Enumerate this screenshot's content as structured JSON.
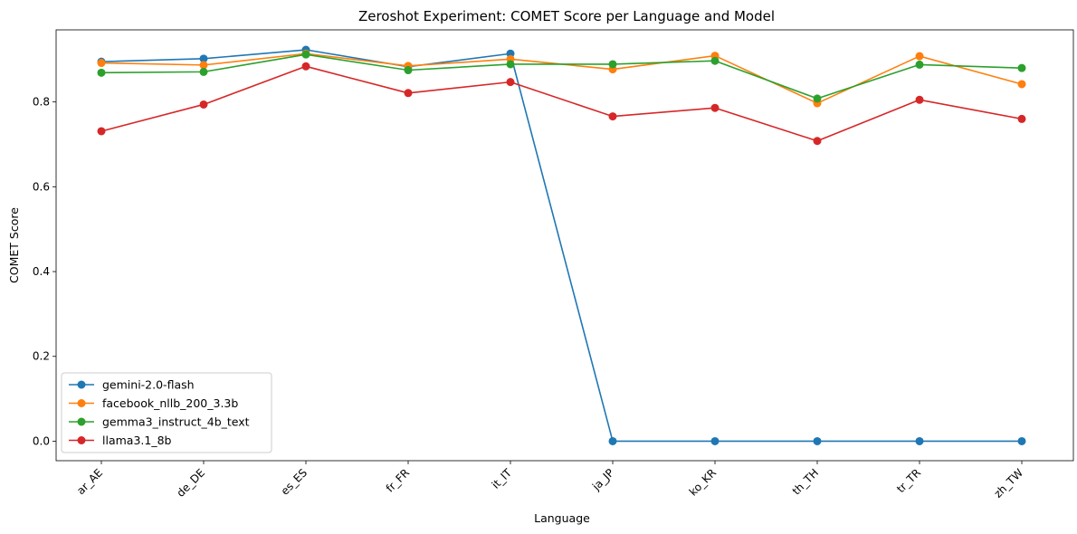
{
  "chart_data": {
    "type": "line",
    "title": "Zeroshot Experiment: COMET Score per Language and Model",
    "xlabel": "Language",
    "ylabel": "COMET Score",
    "categories": [
      "ar_AE",
      "de_DE",
      "es_ES",
      "fr_FR",
      "it_IT",
      "ja_JP",
      "ko_KR",
      "th_TH",
      "tr_TR",
      "zh_TW"
    ],
    "ylim": [
      -0.046,
      0.97
    ],
    "yticks": [
      "0.0",
      "0.2",
      "0.4",
      "0.6",
      "0.8"
    ],
    "grid": false,
    "legend_position": "lower-left",
    "series": [
      {
        "name": "gemini-2.0-flash",
        "color": "#1f77b4",
        "values": [
          0.895,
          0.902,
          0.923,
          0.883,
          0.914,
          0.0,
          0.0,
          0.0,
          0.0,
          0.0
        ]
      },
      {
        "name": "facebook_nllb_200_3.3b",
        "color": "#ff7f0e",
        "values": [
          0.892,
          0.887,
          0.914,
          0.885,
          0.901,
          0.877,
          0.909,
          0.797,
          0.908,
          0.842
        ]
      },
      {
        "name": "gemma3_instruct_4b_text",
        "color": "#2ca02c",
        "values": [
          0.869,
          0.871,
          0.912,
          0.875,
          0.889,
          0.889,
          0.897,
          0.808,
          0.888,
          0.88
        ]
      },
      {
        "name": "llama3.1_8b",
        "color": "#d62728",
        "values": [
          0.731,
          0.794,
          0.884,
          0.821,
          0.847,
          0.766,
          0.786,
          0.708,
          0.805,
          0.76
        ]
      }
    ]
  }
}
